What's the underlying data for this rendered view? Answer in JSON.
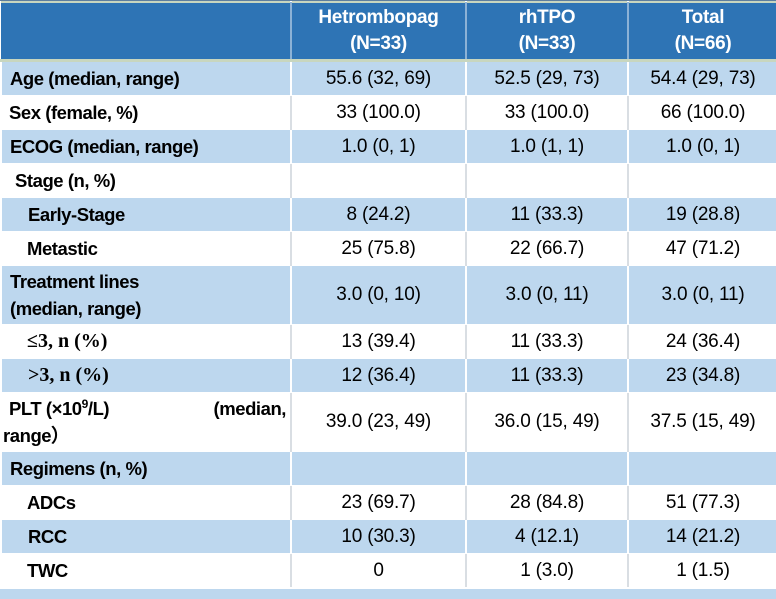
{
  "colors": {
    "header_bg": "#2E74B5",
    "banded_row_bg": "#BDD7EE",
    "plain_row_bg": "#FFFFFF",
    "header_text": "#FFFFFF",
    "body_text": "#000000",
    "header_border_green": "#C8D6BF"
  },
  "table": {
    "header": {
      "row_label_column": "",
      "columns": [
        {
          "name": "Hetrombopag",
          "n_label": "(N=33)"
        },
        {
          "name": "rhTPO",
          "n_label": "(N=33)"
        },
        {
          "name": "Total",
          "n_label": "(N=66)"
        }
      ]
    },
    "rows": [
      {
        "label": "Age (median, range)",
        "values": [
          "55.6 (32, 69)",
          "52.5 (29, 73)",
          "54.4 (29, 73)"
        ]
      },
      {
        "label": "Sex (female, %)",
        "values": [
          "33 (100.0)",
          "33 (100.0)",
          "66 (100.0)"
        ]
      },
      {
        "label": "ECOG (median, range)",
        "values": [
          "1.0 (0, 1)",
          "1.0 (1, 1)",
          "1.0 (0, 1)"
        ]
      },
      {
        "label": "Stage (n, %)",
        "values": [
          "",
          "",
          ""
        ]
      },
      {
        "label": "Early-Stage",
        "values": [
          "8 (24.2)",
          "11 (33.3)",
          "19 (28.8)"
        ]
      },
      {
        "label": "Metastic",
        "values": [
          "25 (75.8)",
          "22 (66.7)",
          "47 (71.2)"
        ]
      },
      {
        "label_line1": "Treatment lines",
        "label_line2": "(median, range)",
        "values": [
          "3.0 (0, 10)",
          "3.0 (0, 11)",
          "3.0 (0, 11)"
        ]
      },
      {
        "label": "≤3, n (%)",
        "values": [
          "13 (39.4)",
          "11 (33.3)",
          "24 (36.4)"
        ]
      },
      {
        "label": ">3, n (%)",
        "values": [
          "12 (36.4)",
          "11 (33.3)",
          "23 (34.8)"
        ]
      },
      {
        "label_a": "PLT (×10",
        "label_sup": "9",
        "label_b": "/L)",
        "label_c": "(median,",
        "label_line2": "range）",
        "values": [
          "39.0 (23, 49)",
          "36.0 (15, 49)",
          "37.5 (15, 49)"
        ]
      },
      {
        "label": "Regimens (n, %)",
        "values": [
          "",
          "",
          ""
        ]
      },
      {
        "label": "ADCs",
        "values": [
          "23 (69.7)",
          "28 (84.8)",
          "51 (77.3)"
        ]
      },
      {
        "label": "RCC",
        "values": [
          "10 (30.3)",
          "4 (12.1)",
          "14 (21.2)"
        ]
      },
      {
        "label": "TWC",
        "values": [
          "0",
          "1 (3.0)",
          "1 (1.5)"
        ]
      }
    ]
  }
}
